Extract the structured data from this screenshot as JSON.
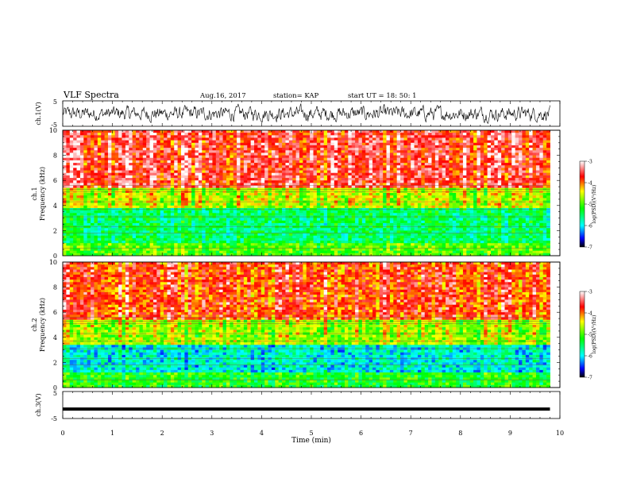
{
  "header": {
    "title": "VLF Spectra",
    "date": "Aug.16, 2017",
    "station": "station= KAP",
    "start": "start  UT  =   18: 50: 1"
  },
  "chart_data": [
    {
      "type": "line",
      "panel": "ch1-waveform",
      "ylabel": "ch.1(V)",
      "ylim": [
        -5,
        5
      ],
      "yticks": [
        "5",
        "-5"
      ],
      "xlim": [
        0,
        10
      ],
      "color": "#000000",
      "description_series": "noisy waveform, amplitude approx -3..+3 V over 0-9.8 min"
    },
    {
      "type": "heatmap",
      "panel": "ch1-spectrogram",
      "ylabel": "Frequency (kHz)",
      "channel_label": "ch.1",
      "ylim": [
        0,
        10
      ],
      "yticks": [
        "0",
        "2",
        "4",
        "6",
        "8",
        "10"
      ],
      "xlim": [
        0,
        10
      ],
      "data_extent_min": 9.8,
      "colorbar": {
        "label": "log(PSD)(V²/Hz)",
        "ticks": [
          "-3",
          "-4",
          "-5",
          "-6",
          "-7"
        ],
        "range": [
          -7,
          -3
        ]
      },
      "bands": [
        {
          "from_khz": 0,
          "to_khz": 1.0,
          "level": -5.0
        },
        {
          "from_khz": 1.0,
          "to_khz": 3.8,
          "level": -5.5
        },
        {
          "from_khz": 3.8,
          "to_khz": 5.5,
          "level": -4.6
        },
        {
          "from_khz": 5.5,
          "to_khz": 10,
          "level": -3.6
        }
      ]
    },
    {
      "type": "heatmap",
      "panel": "ch2-spectrogram",
      "ylabel": "Frequency (kHz)",
      "channel_label": "ch.2",
      "ylim": [
        0,
        10
      ],
      "yticks": [
        "0",
        "2",
        "4",
        "6",
        "8",
        "10"
      ],
      "xlim": [
        0,
        10
      ],
      "data_extent_min": 9.8,
      "colorbar": {
        "label": "log(PSD)(V²/Hz)",
        "ticks": [
          "-3",
          "-4",
          "-5",
          "-6",
          "-7"
        ],
        "range": [
          -7,
          -3
        ]
      },
      "bands": [
        {
          "from_khz": 0,
          "to_khz": 1.2,
          "level": -5.2
        },
        {
          "from_khz": 1.2,
          "to_khz": 3.4,
          "level": -5.9
        },
        {
          "from_khz": 3.4,
          "to_khz": 5.5,
          "level": -4.7
        },
        {
          "from_khz": 5.5,
          "to_khz": 10,
          "level": -3.8
        }
      ]
    },
    {
      "type": "line",
      "panel": "ch3-waveform",
      "ylabel": "ch.3(V)",
      "ylim": [
        -5,
        5
      ],
      "yticks": [
        "5",
        "-5"
      ],
      "xlim": [
        0,
        10
      ],
      "xlabel": "Time (min)",
      "xticks": [
        "0",
        "1",
        "2",
        "3",
        "4",
        "5",
        "6",
        "7",
        "8",
        "9",
        "10"
      ],
      "constant_value": -1.5,
      "color": "#000000"
    }
  ]
}
